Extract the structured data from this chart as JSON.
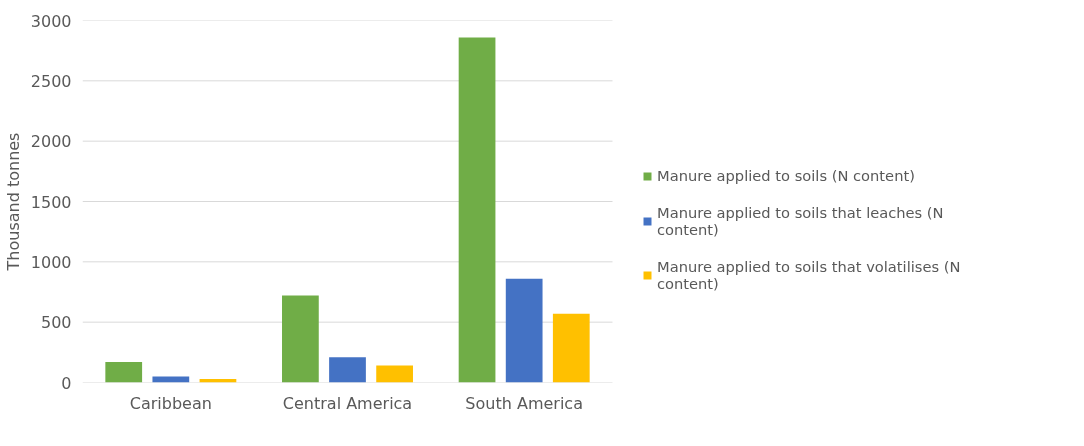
{
  "chart_data": {
    "type": "bar",
    "ylabel": "Thousand tonnes",
    "categories": [
      "Caribbean",
      "Central America",
      "South America"
    ],
    "series": [
      {
        "name": "Manure applied to soils (N content)",
        "color": "#70ad47",
        "values": [
          170,
          720,
          2860
        ]
      },
      {
        "name": "Manure applied to soils that leaches (N content)",
        "color": "#4472c4",
        "values": [
          50,
          210,
          860
        ]
      },
      {
        "name": "Manure applied to soils that volatilises (N content)",
        "color": "#ffc000",
        "values": [
          30,
          140,
          570
        ]
      }
    ],
    "ylim": [
      0,
      3000
    ],
    "yticks": [
      0,
      500,
      1000,
      1500,
      2000,
      2500,
      3000
    ],
    "grid": "y",
    "legend": "right"
  }
}
